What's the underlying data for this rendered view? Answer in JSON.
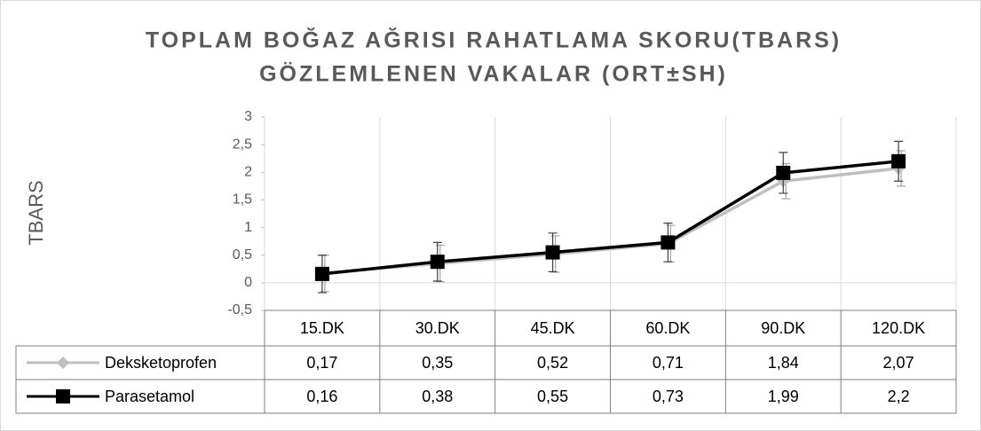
{
  "chart_data": {
    "type": "line",
    "title": [
      "TOPLAM  BOĞAZ AĞRISI RAHATLAMA SKORU(TBARS)",
      "GÖZLEMLENEN VAKALAR (ORT±SH)"
    ],
    "y_label": "TBARS",
    "categories": [
      "15.DK",
      "30.DK",
      "45.DK",
      "60.DK",
      "90.DK",
      "120.DK"
    ],
    "series": [
      {
        "name": "Deksketoprofen",
        "color": "#bfbfbf",
        "marker": "diamond",
        "values": [
          0.17,
          0.35,
          0.52,
          0.71,
          1.84,
          2.07
        ],
        "value_labels": [
          "0,17",
          "0,35",
          "0,52",
          "0,71",
          "1,84",
          "2,07"
        ],
        "errors": [
          0.33,
          0.33,
          0.33,
          0.33,
          0.32,
          0.32
        ]
      },
      {
        "name": "Parasetamol",
        "color": "#000000",
        "marker": "square",
        "values": [
          0.16,
          0.38,
          0.55,
          0.73,
          1.99,
          2.2
        ],
        "value_labels": [
          "0,16",
          "0,38",
          "0,55",
          "0,73",
          "1,99",
          "2,2"
        ],
        "errors": [
          0.34,
          0.35,
          0.35,
          0.35,
          0.37,
          0.36
        ]
      }
    ],
    "ylim": [
      -0.5,
      3
    ],
    "yticks": [
      {
        "value": -0.5,
        "label": "-0,5"
      },
      0,
      {
        "value": 0.5,
        "label": "0,5"
      },
      1,
      {
        "value": 1.5,
        "label": "1,5"
      },
      2,
      {
        "value": 2.5,
        "label": "2,5"
      },
      3
    ]
  }
}
